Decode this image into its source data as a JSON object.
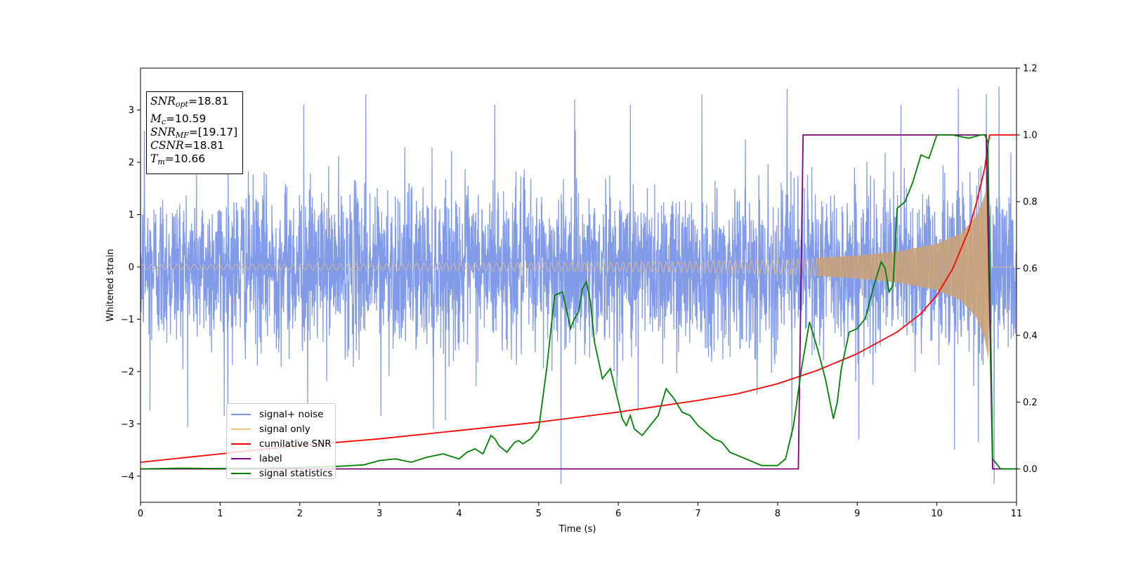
{
  "chart_data": {
    "type": "line",
    "xlabel": "Time (s)",
    "ylabel_left": "Whitened strain",
    "ylabel_right": "",
    "xlim": [
      0,
      11
    ],
    "ylim_left": [
      -4.5,
      3.8
    ],
    "ylim_right": [
      -0.1,
      1.2
    ],
    "x_ticks": [
      "0",
      "1",
      "2",
      "3",
      "4",
      "5",
      "6",
      "7",
      "8",
      "9",
      "10",
      "11"
    ],
    "y_left_ticks": [
      "−4",
      "−3",
      "−2",
      "−1",
      "0",
      "1",
      "2",
      "3"
    ],
    "y_right_ticks": [
      "0.0",
      "0.2",
      "0.4",
      "0.6",
      "0.8",
      "1.0",
      "1.2"
    ],
    "grid": false,
    "legend_position": "lower-left",
    "annotation": {
      "snr_opt": "=18.81",
      "mc": "=10.59",
      "snr_mf": "=[19.17]",
      "csnr": "=18.81",
      "tm": "=10.66"
    },
    "series": [
      {
        "name": "signal+ noise",
        "axis": "left",
        "color": "#7b96e8",
        "description_values": {
          "std": 0.8,
          "range": [
            -4.15,
            3.45
          ]
        },
        "peaks": [
          [
            0.05,
            2.6
          ],
          [
            1.1,
            3.0
          ],
          [
            2.05,
            3.1
          ],
          [
            2.83,
            3.3
          ],
          [
            4.45,
            3.1
          ],
          [
            5.45,
            3.2
          ],
          [
            6.15,
            3.1
          ],
          [
            7.05,
            3.3
          ],
          [
            8.12,
            3.4
          ],
          [
            9.55,
            3.1
          ],
          [
            10.27,
            3.4
          ],
          [
            10.62,
            3.3
          ],
          [
            10.78,
            3.45
          ]
        ],
        "troughs": [
          [
            0.12,
            -2.75
          ],
          [
            1.05,
            -2.85
          ],
          [
            2.1,
            -2.6
          ],
          [
            3.02,
            -2.85
          ],
          [
            3.68,
            -3.1
          ],
          [
            5.28,
            -4.15
          ],
          [
            6.25,
            -2.75
          ],
          [
            8.18,
            -3.25
          ],
          [
            9.02,
            -3.3
          ],
          [
            10.22,
            -3.5
          ],
          [
            10.52,
            -3.35
          ],
          [
            10.72,
            -4.15
          ]
        ]
      },
      {
        "name": "signal only",
        "axis": "left",
        "color": "#f5c27a",
        "description_values": {
          "amplitude_envelope": [
            [
              0,
              0.05
            ],
            [
              2,
              0.06
            ],
            [
              4,
              0.07
            ],
            [
              6,
              0.09
            ],
            [
              8,
              0.13
            ],
            [
              9,
              0.22
            ],
            [
              9.5,
              0.3
            ],
            [
              10,
              0.45
            ],
            [
              10.3,
              0.65
            ],
            [
              10.5,
              1.0
            ],
            [
              10.6,
              1.4
            ],
            [
              10.65,
              1.85
            ],
            [
              10.66,
              0.0
            ],
            [
              11,
              0.0
            ]
          ]
        }
      },
      {
        "name": "cumilative SNR",
        "axis": "right",
        "color": "#ff0000",
        "x": [
          0,
          1,
          2,
          3,
          4,
          5,
          6,
          7,
          7.5,
          8,
          8.5,
          9,
          9.5,
          9.8,
          10.0,
          10.2,
          10.4,
          10.5,
          10.6,
          10.66,
          10.7,
          11
        ],
        "y": [
          0.02,
          0.045,
          0.07,
          0.09,
          0.115,
          0.14,
          0.17,
          0.205,
          0.225,
          0.255,
          0.295,
          0.345,
          0.41,
          0.465,
          0.52,
          0.6,
          0.715,
          0.8,
          0.9,
          1.0,
          1.0,
          1.0
        ]
      },
      {
        "name": "label",
        "axis": "right",
        "color": "#800080",
        "x": [
          0,
          8.26,
          8.32,
          10.62,
          10.7,
          11
        ],
        "y": [
          0.0,
          0.0,
          1.0,
          1.0,
          0.0,
          0.0
        ]
      },
      {
        "name": "signal statistics",
        "axis": "right",
        "color": "#008000",
        "x": [
          0,
          0.5,
          1,
          1.5,
          2,
          2.5,
          2.8,
          3.0,
          3.2,
          3.4,
          3.6,
          3.8,
          4.0,
          4.1,
          4.2,
          4.3,
          4.4,
          4.45,
          4.5,
          4.6,
          4.7,
          4.75,
          4.8,
          4.9,
          5.0,
          5.1,
          5.2,
          5.3,
          5.4,
          5.45,
          5.5,
          5.55,
          5.6,
          5.65,
          5.7,
          5.8,
          5.9,
          6.0,
          6.05,
          6.1,
          6.15,
          6.2,
          6.25,
          6.3,
          6.4,
          6.5,
          6.6,
          6.7,
          6.8,
          6.9,
          7.0,
          7.1,
          7.2,
          7.3,
          7.4,
          7.5,
          7.6,
          7.8,
          8.0,
          8.1,
          8.2,
          8.3,
          8.4,
          8.5,
          8.6,
          8.7,
          8.75,
          8.8,
          8.9,
          9.0,
          9.1,
          9.2,
          9.3,
          9.35,
          9.4,
          9.45,
          9.5,
          9.6,
          9.7,
          9.8,
          9.9,
          10.0,
          10.2,
          10.4,
          10.55,
          10.6,
          10.64,
          10.7,
          10.8,
          11
        ],
        "y": [
          0.0,
          0.002,
          0.001,
          0.002,
          0.004,
          0.008,
          0.012,
          0.025,
          0.03,
          0.02,
          0.035,
          0.045,
          0.03,
          0.05,
          0.06,
          0.045,
          0.1,
          0.09,
          0.07,
          0.05,
          0.08,
          0.085,
          0.075,
          0.09,
          0.12,
          0.3,
          0.52,
          0.53,
          0.42,
          0.45,
          0.47,
          0.54,
          0.56,
          0.5,
          0.38,
          0.27,
          0.3,
          0.2,
          0.15,
          0.13,
          0.16,
          0.12,
          0.11,
          0.1,
          0.13,
          0.16,
          0.24,
          0.21,
          0.17,
          0.16,
          0.13,
          0.11,
          0.09,
          0.08,
          0.05,
          0.04,
          0.03,
          0.01,
          0.01,
          0.03,
          0.13,
          0.3,
          0.44,
          0.36,
          0.27,
          0.15,
          0.2,
          0.3,
          0.41,
          0.42,
          0.45,
          0.54,
          0.62,
          0.6,
          0.53,
          0.55,
          0.78,
          0.8,
          0.86,
          0.94,
          0.93,
          1.0,
          1.0,
          0.99,
          1.0,
          1.0,
          0.98,
          0.03,
          0.0,
          0.0
        ]
      }
    ]
  }
}
